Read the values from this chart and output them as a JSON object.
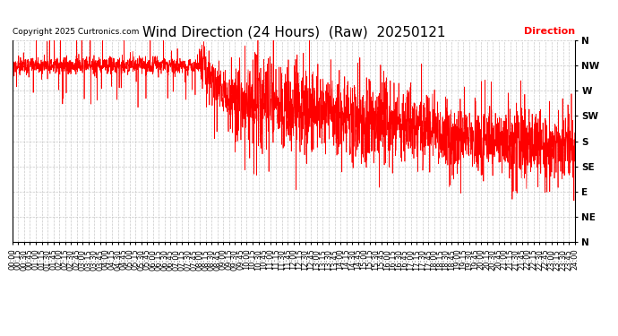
{
  "title": "Wind Direction (24 Hours)  (Raw)  20250121",
  "copyright": "Copyright 2025 Curtronics.com",
  "legend_label": "Direction",
  "legend_color": "#ff0000",
  "line_color": "#ff0000",
  "background_color": "#ffffff",
  "grid_color": "#bbbbbb",
  "ytick_labels": [
    "N",
    "NW",
    "W",
    "SW",
    "S",
    "SE",
    "E",
    "NE",
    "N"
  ],
  "ytick_values": [
    360,
    315,
    270,
    225,
    180,
    135,
    90,
    45,
    0
  ],
  "ylim": [
    0,
    360
  ],
  "title_fontsize": 11,
  "tick_fontsize": 6.5,
  "copyright_fontsize": 6.5,
  "legend_fontsize": 8,
  "total_minutes": 1440
}
